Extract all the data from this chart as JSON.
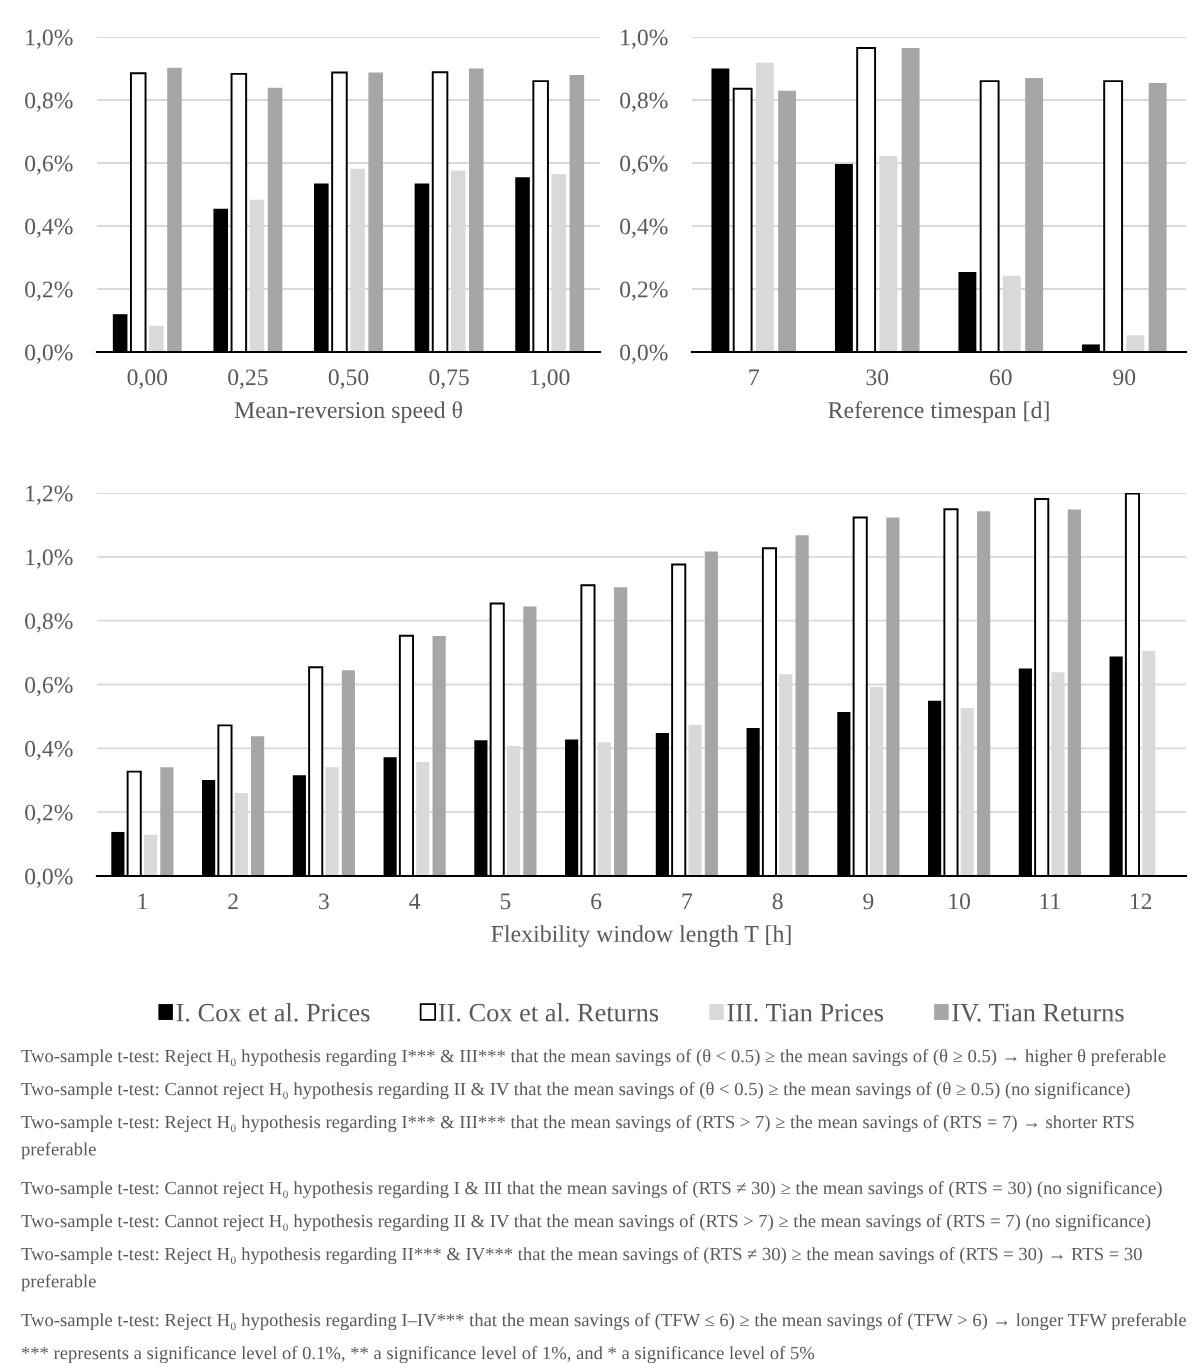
{
  "chart_data": [
    {
      "type": "bar",
      "xlabel": "Mean-reversion speed θ",
      "categories": [
        "0,00",
        "0,25",
        "0,50",
        "0,75",
        "1,00"
      ],
      "series": [
        {
          "color": "#000000",
          "values": [
            0.12,
            0.455,
            0.535,
            0.535,
            0.555
          ]
        },
        {
          "color": "#ffffff",
          "values": [
            0.885,
            0.883,
            0.887,
            0.888,
            0.86
          ]
        },
        {
          "color": "#d9d9d9",
          "values": [
            0.083,
            0.483,
            0.582,
            0.576,
            0.565
          ]
        },
        {
          "color": "#a6a6a6",
          "values": [
            0.902,
            0.839,
            0.887,
            0.9,
            0.879
          ]
        }
      ],
      "ylim": [
        0,
        1
      ],
      "yticks": [
        {
          "value": 0,
          "label": "0,0%"
        },
        {
          "value": 0.2,
          "label": "0,2%"
        },
        {
          "value": 0.4,
          "label": "0,4%"
        },
        {
          "value": 0.6,
          "label": "0,6%"
        },
        {
          "value": 0.8,
          "label": "0,8%"
        },
        {
          "value": 1.0,
          "label": "1,0%"
        }
      ],
      "grid": "y"
    },
    {
      "type": "bar",
      "xlabel": "Reference timespan [d]",
      "categories": [
        "7",
        "30",
        "60",
        "90"
      ],
      "series": [
        {
          "color": "#000000",
          "values": [
            0.9,
            0.597,
            0.254,
            0.024
          ]
        },
        {
          "color": "#ffffff",
          "values": [
            0.836,
            0.965,
            0.86,
            0.86
          ]
        },
        {
          "color": "#d9d9d9",
          "values": [
            0.918,
            0.622,
            0.242,
            0.053
          ]
        },
        {
          "color": "#a6a6a6",
          "values": [
            0.829,
            0.965,
            0.87,
            0.854
          ]
        }
      ],
      "ylim": [
        0,
        1
      ],
      "yticks": [
        {
          "value": 0,
          "label": "0,0%"
        },
        {
          "value": 0.2,
          "label": "0,2%"
        },
        {
          "value": 0.4,
          "label": "0,4%"
        },
        {
          "value": 0.6,
          "label": "0,6%"
        },
        {
          "value": 0.8,
          "label": "0,8%"
        },
        {
          "value": 1.0,
          "label": "1,0%"
        }
      ],
      "grid": "y"
    },
    {
      "type": "bar",
      "xlabel": "Flexibility window length T [h]",
      "categories": [
        "1",
        "2",
        "3",
        "4",
        "5",
        "6",
        "7",
        "8",
        "9",
        "10",
        "11",
        "12"
      ],
      "series": [
        {
          "name": "I. Cox et al. Prices",
          "color": "#000000",
          "values": [
            0.138,
            0.301,
            0.316,
            0.372,
            0.425,
            0.428,
            0.448,
            0.464,
            0.514,
            0.549,
            0.65,
            0.688
          ]
        },
        {
          "name": "II. Cox et al. Returns",
          "color": "#ffffff",
          "values": [
            0.327,
            0.472,
            0.654,
            0.753,
            0.854,
            0.911,
            0.976,
            1.027,
            1.123,
            1.149,
            1.181,
            1.198
          ]
        },
        {
          "name": "III. Tian Prices",
          "color": "#d9d9d9",
          "values": [
            0.129,
            0.26,
            0.341,
            0.357,
            0.407,
            0.419,
            0.474,
            0.632,
            0.592,
            0.526,
            0.638,
            0.705
          ]
        },
        {
          "name": "IV. Tian Returns",
          "color": "#a6a6a6",
          "values": [
            0.341,
            0.438,
            0.645,
            0.752,
            0.844,
            0.905,
            1.017,
            1.068,
            1.123,
            1.143,
            1.148,
            null
          ]
        }
      ],
      "ylim": [
        0,
        1.2
      ],
      "yticks": [
        {
          "value": 0,
          "label": "0,0%"
        },
        {
          "value": 0.2,
          "label": "0,2%"
        },
        {
          "value": 0.4,
          "label": "0,4%"
        },
        {
          "value": 0.6,
          "label": "0,6%"
        },
        {
          "value": 0.8,
          "label": "0,8%"
        },
        {
          "value": 1.0,
          "label": "1,0%"
        },
        {
          "value": 1.2,
          "label": "1,2%"
        }
      ],
      "grid": "y",
      "legend": "bottom",
      "annotations": [
        "Two-sample t-test: Reject H₀ hypothesis regarding I*** & III*** that the mean savings of (θ < 0.5) ≥ the mean savings of (θ ≥ 0.5) → higher θ preferable",
        "Two-sample t-test: Cannot reject H₀ hypothesis regarding II & IV that the mean savings of (θ < 0.5) ≥ the mean savings of (θ ≥ 0.5) (no significance)",
        "Two-sample t-test: Reject H₀ hypothesis regarding I*** & III*** that the mean savings of (RTS > 7) ≥ the mean savings of (RTS = 7) → shorter RTS preferable",
        "Two-sample t-test: Cannot reject H₀ hypothesis regarding I & III that the mean savings of (RTS ≠ 30) ≥ the mean savings of (RTS = 30) (no significance)",
        "Two-sample t-test: Cannot reject H₀ hypothesis regarding II & IV that the mean savings of (RTS > 7) ≥ the mean savings of (RTS = 7) (no significance)",
        "Two-sample t-test: Reject H₀ hypothesis regarding II*** & IV*** that the mean savings of (RTS ≠ 30) ≥ the mean savings of (RTS = 30) → RTS = 30 preferable",
        "Two-sample t-test: Reject H₀ hypothesis regarding I–IV*** that the mean savings of (TFW ≤ 6) ≥ the mean savings of (TFW > 6) → longer TFW preferable",
        "*** represents a significance level of 0.1%, ** a significance level of 1%, and * a significance level of 5%"
      ]
    }
  ]
}
